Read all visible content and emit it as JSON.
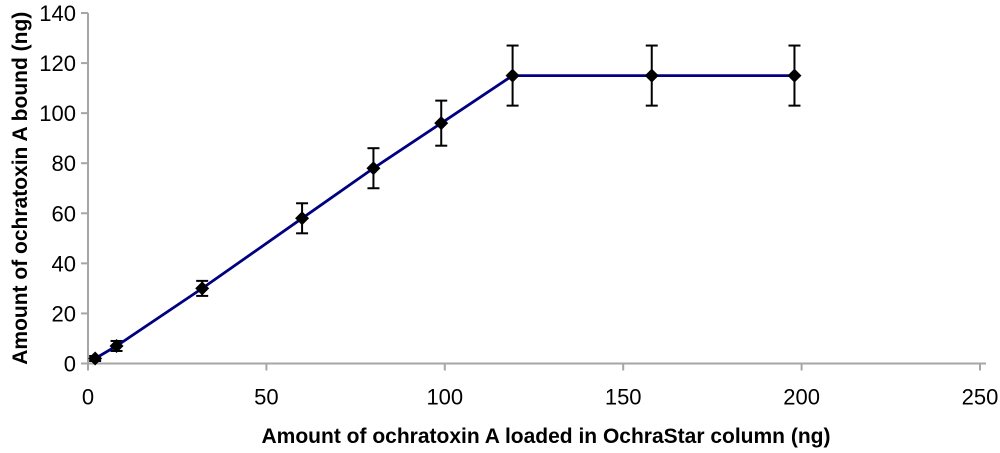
{
  "chart_data": {
    "type": "line",
    "title": "",
    "xlabel": "Amount of ochratoxin A loaded in OchraStar column (ng)",
    "ylabel": "Amount of ochratoxin A bound (ng)",
    "xlim": [
      0,
      250
    ],
    "ylim": [
      0,
      140
    ],
    "x_ticks": [
      0,
      50,
      100,
      150,
      200,
      250
    ],
    "y_ticks": [
      0,
      20,
      40,
      60,
      80,
      100,
      120,
      140
    ],
    "grid": false,
    "legend_position": "none",
    "line_color": "#000080",
    "marker": "diamond",
    "marker_color": "#000000",
    "error_bar_color": "#000000",
    "axis_color": "#a6a6a6",
    "series": [
      {
        "name": "ochratoxin A bound",
        "points": [
          {
            "x": 2,
            "y": 2,
            "err": 1
          },
          {
            "x": 8,
            "y": 7,
            "err": 2
          },
          {
            "x": 32,
            "y": 30,
            "err": 3
          },
          {
            "x": 60,
            "y": 58,
            "err": 6
          },
          {
            "x": 80,
            "y": 78,
            "err": 8
          },
          {
            "x": 99,
            "y": 96,
            "err": 9
          },
          {
            "x": 119,
            "y": 115,
            "err": 12
          },
          {
            "x": 158,
            "y": 115,
            "err": 12
          },
          {
            "x": 198,
            "y": 115,
            "err": 12
          }
        ]
      }
    ]
  }
}
